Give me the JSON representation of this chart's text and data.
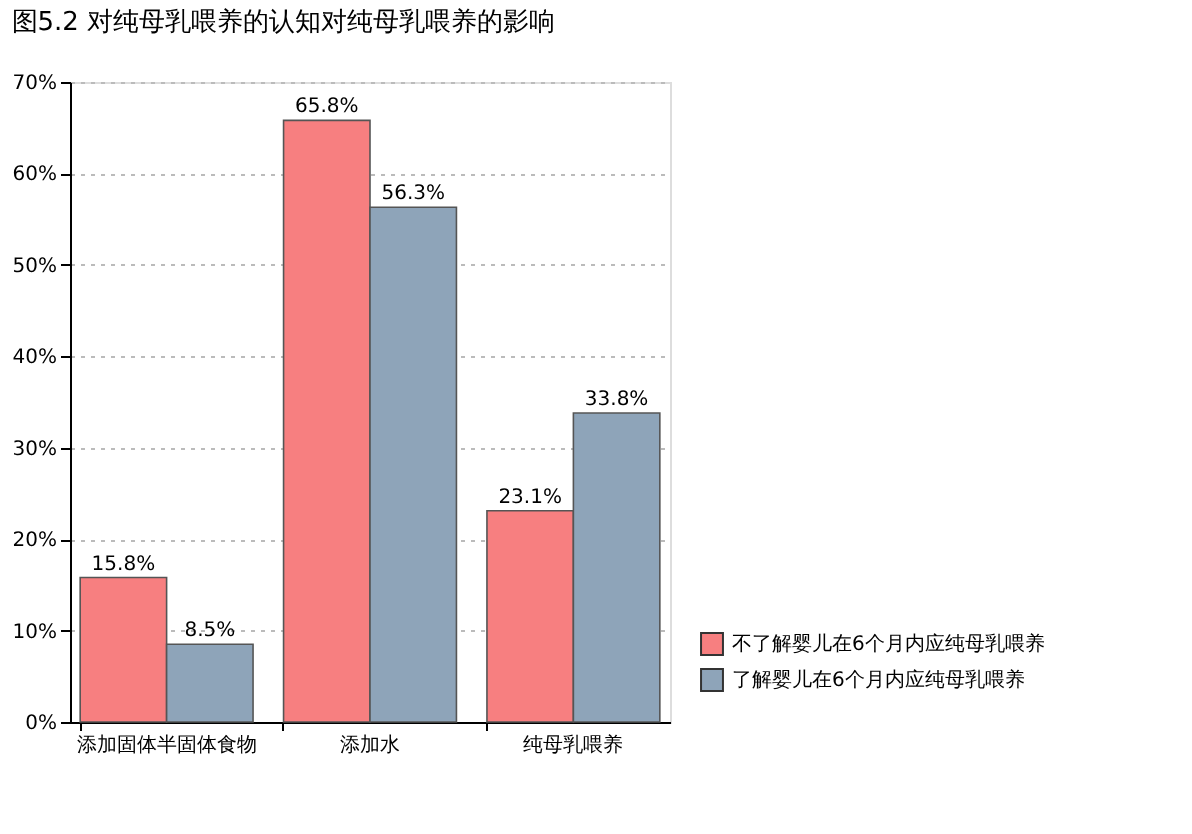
{
  "chart_data": {
    "type": "bar",
    "title": "图5.2 对纯母乳喂养的认知对纯母乳喂养的影响",
    "categories": [
      "添加固体半固体食物",
      "添加水",
      "纯母乳喂养"
    ],
    "series": [
      {
        "name": "不了解婴儿在6个月内应纯母乳喂养",
        "color": "#f77f80",
        "values": [
          15.8,
          65.8,
          23.1
        ],
        "value_labels": [
          "15.8%",
          "65.8%",
          "23.1%"
        ]
      },
      {
        "name": "了解婴儿在6个月内应纯母乳喂养",
        "color": "#8ea4b9",
        "values": [
          8.5,
          56.3,
          33.8
        ],
        "value_labels": [
          "8.5%",
          "56.3%",
          "33.8%"
        ]
      }
    ],
    "ylim": [
      0,
      70
    ],
    "yticks": [
      {
        "value": 0,
        "label": "0%"
      },
      {
        "value": 10,
        "label": "10%"
      },
      {
        "value": 20,
        "label": "20%"
      },
      {
        "value": 30,
        "label": "30%"
      },
      {
        "value": 40,
        "label": "40%"
      },
      {
        "value": 50,
        "label": "50%"
      },
      {
        "value": 60,
        "label": "60%"
      },
      {
        "value": 70,
        "label": "70%"
      }
    ],
    "grid": "y",
    "legend": "bottom right"
  }
}
